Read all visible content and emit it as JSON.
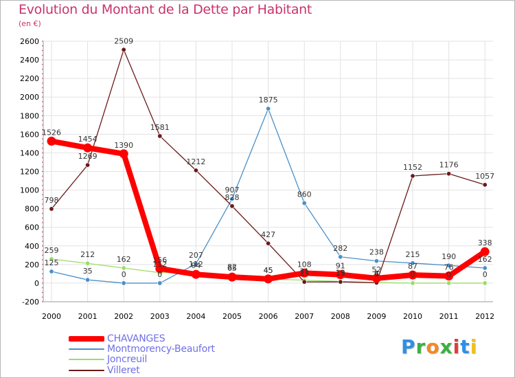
{
  "title": "Evolution du Montant de la Dette par Habitant",
  "subtitle": "(en €)",
  "brand": "Proxiti",
  "brand_colors": [
    "#2f8fe6",
    "#3cb043",
    "#f08a24",
    "#3cb043",
    "#e23b3b",
    "#2f8fe6",
    "#f0c020"
  ],
  "colors": {
    "title": "#c8336b",
    "grid_line": "#e2e2e2",
    "axis_text": "#000000",
    "legend_text": "#6f6fe8"
  },
  "chart_data": {
    "type": "line",
    "title": "Evolution du Montant de la Dette par Habitant",
    "subtitle": "(en €)",
    "xlabel": "",
    "ylabel": "",
    "categories": [
      "2000",
      "2001",
      "2002",
      "2003",
      "2004",
      "2005",
      "2006",
      "2007",
      "2008",
      "2009",
      "2010",
      "2011",
      "2012"
    ],
    "ylim": [
      -200,
      2600
    ],
    "yticks": [
      -200,
      0,
      200,
      400,
      600,
      800,
      1000,
      1200,
      1400,
      1600,
      1800,
      2000,
      2200,
      2400,
      2600
    ],
    "grid": true,
    "legend_position": "bottom-left",
    "series": [
      {
        "name": "CHAVANGES",
        "color": "#ff0000",
        "values": [
          1526,
          1454,
          1390,
          156,
          94,
          65,
          45,
          108,
          91,
          52,
          87,
          76,
          338
        ],
        "labels": [
          "1526",
          "1454",
          "1390",
          "156",
          "94",
          "65",
          "45",
          "108",
          "91",
          "52",
          "87",
          "76",
          "338"
        ]
      },
      {
        "name": "Montmorency-Beaufort",
        "color": "#4a90c8",
        "values": [
          125,
          35,
          0,
          0,
          207,
          907,
          1875,
          860,
          282,
          238,
          215,
          190,
          162
        ],
        "labels": [
          "125",
          "35",
          "0",
          "0",
          "207",
          "907",
          "1875",
          "860",
          "282",
          "238",
          "215",
          "190",
          "162"
        ]
      },
      {
        "name": "Joncreuil",
        "color": "#99dd66",
        "values": [
          259,
          212,
          162,
          112,
          112,
          82,
          45,
          31,
          19,
          6,
          0,
          0,
          0
        ],
        "labels": [
          "259",
          "212",
          "162",
          "112",
          "112",
          "82",
          "45",
          "31",
          "19",
          "6",
          "0",
          "0",
          "0"
        ]
      },
      {
        "name": "Villeret",
        "color": "#6b1a1a",
        "values": [
          798,
          1269,
          2509,
          1581,
          1212,
          828,
          427,
          13,
          13,
          4,
          1152,
          1176,
          1057
        ],
        "labels": [
          "798",
          "1269",
          "2509",
          "1581",
          "1212",
          "828",
          "427",
          "13",
          "13",
          "4",
          "1152",
          "1176",
          "1057"
        ]
      }
    ]
  }
}
